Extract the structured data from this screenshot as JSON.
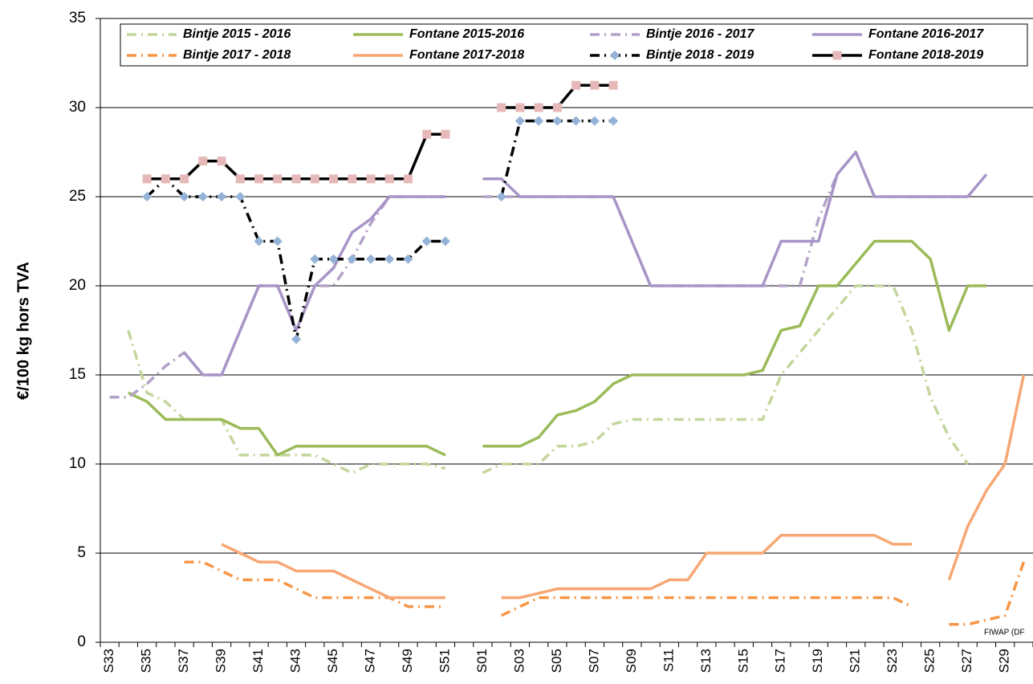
{
  "chart_data": {
    "type": "line",
    "y_label": "€/100 kg hors TVA",
    "annotation": "FIWAP (DF",
    "categories": [
      "S33",
      null,
      "S35",
      null,
      "S37",
      null,
      "S39",
      null,
      "S41",
      null,
      "S43",
      null,
      "S45",
      null,
      "S47",
      null,
      "S49",
      null,
      "S51",
      null,
      "S01",
      null,
      "S03",
      null,
      "S05",
      null,
      "S07",
      null,
      "S09",
      null,
      "S11",
      null,
      "S13",
      null,
      "S15",
      null,
      "S17",
      null,
      "S19",
      null,
      "S21",
      null,
      "S23",
      null,
      "S25",
      null,
      "S27",
      null,
      "S29",
      null
    ],
    "ylim": [
      0,
      35
    ],
    "yticks": [
      0,
      5,
      10,
      15,
      20,
      25,
      30,
      35
    ],
    "grid": true,
    "series": [
      {
        "name": "Bintje 2015 - 2016",
        "color": "#c3d69b",
        "style": "dashdot",
        "values": [
          null,
          17.5,
          14,
          13.5,
          12.5,
          12.5,
          12.5,
          10.5,
          10.5,
          10.5,
          10.5,
          10.5,
          10,
          9.5,
          10,
          10,
          10,
          10,
          9.75,
          null,
          9.5,
          10,
          10,
          10,
          11,
          11,
          11.25,
          12.25,
          12.5,
          12.5,
          12.5,
          12.5,
          12.5,
          12.5,
          12.5,
          12.5,
          15,
          16.25,
          17.5,
          18.75,
          20,
          20,
          20,
          17.5,
          13.75,
          11.5,
          10,
          null,
          null,
          null
        ]
      },
      {
        "name": "Fontane 2015-2016",
        "color": "#9bbb59",
        "style": "solid",
        "values": [
          null,
          14,
          13.5,
          12.5,
          12.5,
          12.5,
          12.5,
          12,
          12,
          10.5,
          11,
          11,
          11,
          11,
          11,
          11,
          11,
          11,
          10.5,
          null,
          11,
          11,
          11,
          11.5,
          12.75,
          13,
          13.5,
          14.5,
          15,
          15,
          15,
          15,
          15,
          15,
          15,
          15.25,
          17.5,
          17.75,
          20,
          20,
          21.25,
          22.5,
          22.5,
          22.5,
          21.5,
          17.5,
          20,
          20,
          null,
          null
        ]
      },
      {
        "name": "Bintje 2016 - 2017",
        "color": "#b3a2c7",
        "style": "dashdot",
        "values": [
          13.75,
          13.75,
          14.5,
          15.5,
          16.25,
          15,
          15,
          17.5,
          20,
          20,
          17.5,
          20,
          20,
          21.5,
          23.5,
          25,
          25,
          25,
          25,
          null,
          25,
          25,
          25,
          25,
          25,
          25,
          25,
          25,
          22.5,
          20,
          20,
          20,
          20,
          20,
          20,
          20,
          20,
          20,
          23.75,
          26.25,
          27.5,
          25,
          25,
          25,
          25,
          25,
          25,
          null,
          null,
          null
        ]
      },
      {
        "name": "Fontane 2016-2017",
        "color": "#a895c8",
        "style": "solid",
        "values": [
          null,
          null,
          null,
          null,
          16.25,
          15,
          15,
          17.5,
          20,
          20,
          17.5,
          20,
          21,
          23,
          23.75,
          25,
          25,
          25,
          25,
          null,
          26,
          26,
          25,
          25,
          25,
          25,
          25,
          25,
          22.5,
          20,
          20,
          20,
          20,
          20,
          20,
          20,
          22.5,
          22.5,
          22.5,
          26.25,
          27.5,
          25,
          25,
          25,
          25,
          25,
          25,
          26.25,
          null,
          null
        ]
      },
      {
        "name": "Bintje 2017 - 2018",
        "color": "#f79646",
        "style": "dashdot",
        "values": [
          null,
          null,
          null,
          null,
          4.5,
          4.5,
          4,
          3.5,
          3.5,
          3.5,
          3,
          2.5,
          2.5,
          2.5,
          2.5,
          2.5,
          2,
          2,
          2,
          null,
          null,
          1.5,
          2,
          2.5,
          2.5,
          2.5,
          2.5,
          2.5,
          2.5,
          2.5,
          2.5,
          2.5,
          2.5,
          2.5,
          2.5,
          2.5,
          2.5,
          2.5,
          2.5,
          2.5,
          2.5,
          2.5,
          2.5,
          2,
          null,
          1,
          1,
          1.25,
          1.5,
          4.5
        ]
      },
      {
        "name": "Fontane 2017-2018",
        "color": "#f7a774",
        "style": "solid",
        "values": [
          null,
          null,
          null,
          null,
          null,
          null,
          5.5,
          5,
          4.5,
          4.5,
          4,
          4,
          4,
          3.5,
          3,
          2.5,
          2.5,
          2.5,
          2.5,
          null,
          null,
          2.5,
          2.5,
          2.75,
          3,
          3,
          3,
          3,
          3,
          3,
          3.5,
          3.5,
          5,
          5,
          5,
          5,
          6,
          6,
          6,
          6,
          6,
          6,
          5.5,
          5.5,
          null,
          3.5,
          6.5,
          8.5,
          10,
          15
        ]
      },
      {
        "name": "Bintje 2018 - 2019",
        "color": "#000000",
        "style": "dashdot",
        "marker": "diamond",
        "marker_color": "#95b3d7",
        "values": [
          null,
          null,
          25,
          26,
          25,
          25,
          25,
          25,
          22.5,
          22.5,
          17,
          21.5,
          21.5,
          21.5,
          21.5,
          21.5,
          21.5,
          22.5,
          22.5,
          null,
          null,
          25,
          29.25,
          29.25,
          29.25,
          29.25,
          29.25,
          29.25,
          null,
          null,
          null,
          null,
          null,
          null,
          null,
          null,
          null,
          null,
          null,
          null,
          null,
          null,
          null,
          null,
          null,
          null,
          null,
          null,
          null,
          null
        ]
      },
      {
        "name": "Fontane 2018-2019",
        "color": "#000000",
        "style": "solid",
        "marker": "square",
        "marker_color": "#e6b9b8",
        "values": [
          null,
          null,
          26,
          26,
          26,
          27,
          27,
          26,
          26,
          26,
          26,
          26,
          26,
          26,
          26,
          26,
          26,
          28.5,
          28.5,
          null,
          null,
          30,
          30,
          30,
          30,
          31.25,
          31.25,
          31.25,
          null,
          null,
          null,
          null,
          null,
          null,
          null,
          null,
          null,
          null,
          null,
          null,
          null,
          null,
          null,
          null,
          null,
          null,
          null,
          null,
          null,
          null
        ]
      }
    ]
  }
}
